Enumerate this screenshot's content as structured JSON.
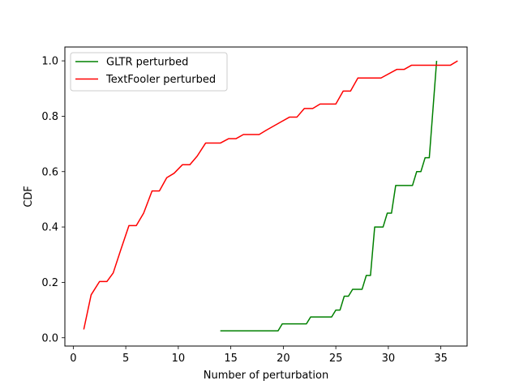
{
  "chart_data": {
    "type": "line",
    "xlabel": "Number of perturbation",
    "ylabel": "CDF",
    "xlim": [
      -0.8,
      37.5
    ],
    "ylim": [
      -0.03,
      1.05
    ],
    "xticks": [
      0,
      5,
      10,
      15,
      20,
      25,
      30,
      35
    ],
    "yticks": [
      0.0,
      0.2,
      0.4,
      0.6,
      0.8,
      1.0
    ],
    "xtick_labels": [
      "0",
      "5",
      "10",
      "15",
      "20",
      "25",
      "30",
      "35"
    ],
    "ytick_labels": [
      "0.0",
      "0.2",
      "0.4",
      "0.6",
      "0.8",
      "1.0"
    ],
    "grid": false,
    "legend_position": "top-left",
    "series": [
      {
        "name": "GLTR perturbed",
        "color": "#008000",
        "points": [
          [
            14.0,
            0.025
          ],
          [
            19.5,
            0.025
          ],
          [
            19.9,
            0.05
          ],
          [
            22.2,
            0.05
          ],
          [
            22.6,
            0.075
          ],
          [
            24.6,
            0.075
          ],
          [
            25.0,
            0.1
          ],
          [
            25.4,
            0.1
          ],
          [
            25.8,
            0.15
          ],
          [
            26.2,
            0.15
          ],
          [
            26.6,
            0.175
          ],
          [
            27.5,
            0.175
          ],
          [
            27.9,
            0.225
          ],
          [
            28.3,
            0.225
          ],
          [
            28.7,
            0.4
          ],
          [
            29.5,
            0.4
          ],
          [
            29.9,
            0.45
          ],
          [
            30.3,
            0.45
          ],
          [
            30.7,
            0.55
          ],
          [
            32.3,
            0.55
          ],
          [
            32.7,
            0.6
          ],
          [
            33.1,
            0.6
          ],
          [
            33.5,
            0.65
          ],
          [
            33.9,
            0.65
          ],
          [
            34.6,
            1.0
          ]
        ]
      },
      {
        "name": "TextFooler perturbed",
        "color": "#ff0000",
        "points": [
          [
            1.0,
            0.03
          ],
          [
            1.7,
            0.155
          ],
          [
            2.5,
            0.203
          ],
          [
            3.2,
            0.203
          ],
          [
            3.8,
            0.234
          ],
          [
            4.5,
            0.315
          ],
          [
            5.3,
            0.405
          ],
          [
            6.0,
            0.405
          ],
          [
            6.7,
            0.45
          ],
          [
            7.5,
            0.53
          ],
          [
            8.2,
            0.53
          ],
          [
            8.9,
            0.578
          ],
          [
            9.6,
            0.594
          ],
          [
            10.4,
            0.625
          ],
          [
            11.1,
            0.625
          ],
          [
            11.8,
            0.656
          ],
          [
            12.6,
            0.703
          ],
          [
            14.0,
            0.703
          ],
          [
            14.8,
            0.719
          ],
          [
            15.5,
            0.719
          ],
          [
            16.2,
            0.734
          ],
          [
            17.7,
            0.734
          ],
          [
            18.4,
            0.75
          ],
          [
            19.8,
            0.78
          ],
          [
            20.6,
            0.797
          ],
          [
            21.3,
            0.797
          ],
          [
            22.0,
            0.828
          ],
          [
            22.8,
            0.828
          ],
          [
            23.5,
            0.844
          ],
          [
            25.0,
            0.844
          ],
          [
            25.7,
            0.891
          ],
          [
            26.4,
            0.891
          ],
          [
            27.1,
            0.938
          ],
          [
            29.3,
            0.938
          ],
          [
            30.8,
            0.969
          ],
          [
            31.5,
            0.969
          ],
          [
            32.2,
            0.984
          ],
          [
            35.9,
            0.984
          ],
          [
            36.6,
            1.0
          ]
        ]
      }
    ]
  }
}
